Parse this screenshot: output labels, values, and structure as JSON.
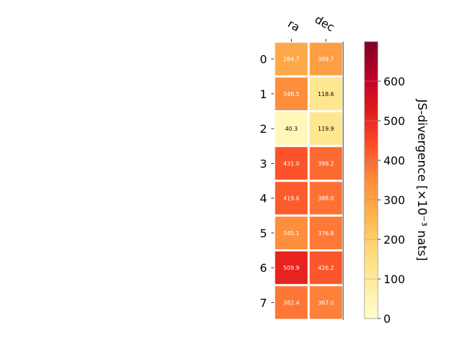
{
  "chart_data": {
    "type": "heatmap",
    "columns": [
      "ra",
      "dec"
    ],
    "rows": [
      "0",
      "1",
      "2",
      "3",
      "4",
      "5",
      "6",
      "7"
    ],
    "values": [
      [
        284.7,
        309.7
      ],
      [
        348.5,
        118.6
      ],
      [
        40.3,
        119.9
      ],
      [
        431.0,
        398.2
      ],
      [
        419.6,
        388.0
      ],
      [
        345.1,
        376.8
      ],
      [
        509.9,
        426.2
      ],
      [
        382.4,
        367.0
      ]
    ],
    "cell_labels": [
      [
        "284.7",
        "309.7"
      ],
      [
        "348.5",
        "118.6"
      ],
      [
        "40.3",
        "119.9"
      ],
      [
        "431.0",
        "398.2"
      ],
      [
        "419.6",
        "388.0"
      ],
      [
        "345.1",
        "376.8"
      ],
      [
        "509.9",
        "426.2"
      ],
      [
        "382.4",
        "367.0"
      ]
    ],
    "colormap": "YlOrRd",
    "colorbar": {
      "label": "JS-divergence [×10⁻³ nats]",
      "range": [
        0,
        700
      ],
      "ticks": [
        0,
        100,
        200,
        300,
        400,
        500,
        600
      ],
      "tick_labels": [
        "0",
        "100",
        "200",
        "300",
        "400",
        "500",
        "600"
      ]
    },
    "grid": false,
    "legend": "right"
  }
}
